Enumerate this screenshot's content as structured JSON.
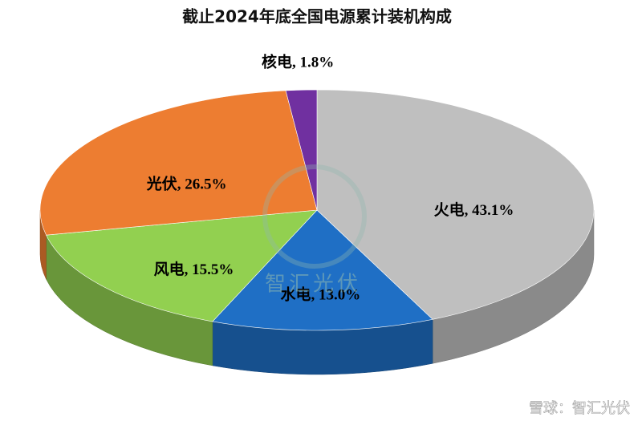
{
  "chart_data": {
    "type": "pie3d",
    "title": "截止2024年底全国电源累计装机构成",
    "values": [
      43.1,
      13.0,
      15.5,
      26.5,
      1.8
    ],
    "value_labels": [
      "火电, 43.1%",
      "水电, 13.0%",
      "风电, 15.5%",
      "光伏, 26.5%",
      "核电, 1.8%"
    ],
    "colors": [
      "#bfbfbf",
      "#1f6fc5",
      "#92d050",
      "#ed7d31",
      "#7030a0"
    ],
    "watermark": "智汇光伏",
    "footer": "雪球：智汇光伏"
  }
}
